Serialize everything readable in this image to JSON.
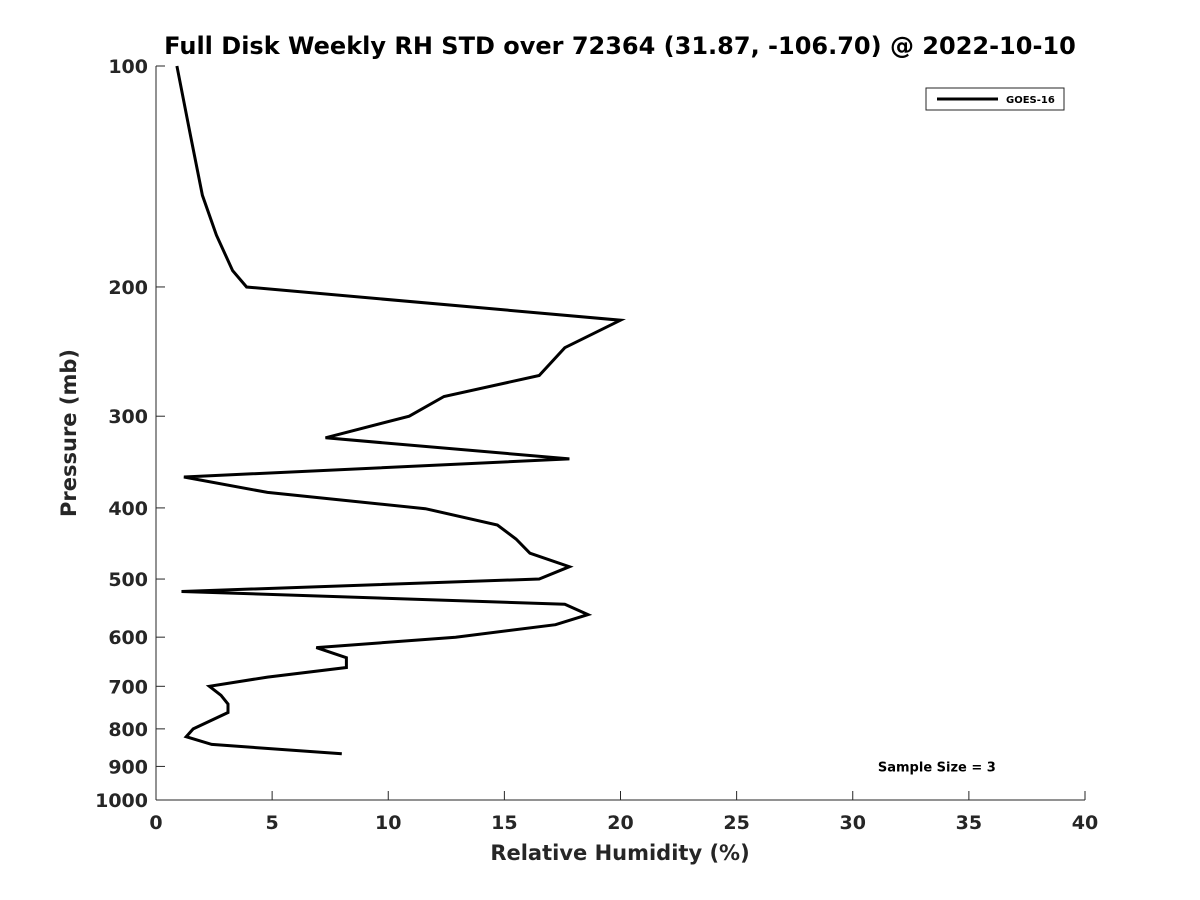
{
  "chart_data": {
    "type": "line",
    "title": "Full Disk Weekly RH STD over 72364 (31.87, -106.70) @ 2022-10-10",
    "xlabel": "Relative Humidity (%)",
    "ylabel": "Pressure (mb)",
    "xlim": [
      0,
      40
    ],
    "ylim": [
      100,
      1000
    ],
    "y_scale": "log",
    "y_reversed": true,
    "x_ticks": [
      "0",
      "5",
      "10",
      "15",
      "20",
      "25",
      "30",
      "35",
      "40"
    ],
    "y_ticks": [
      "100",
      "200",
      "300",
      "400",
      "500",
      "600",
      "700",
      "800",
      "900",
      "1000"
    ],
    "grid": false,
    "legend_position": "top-right",
    "series": [
      {
        "name": "GOES-16",
        "color": "#000000",
        "points": [
          [
            0.9,
            100
          ],
          [
            1.5,
            125
          ],
          [
            2.0,
            150
          ],
          [
            2.6,
            170
          ],
          [
            3.3,
            190
          ],
          [
            3.9,
            200
          ],
          [
            20.0,
            222
          ],
          [
            17.6,
            242
          ],
          [
            16.5,
            264
          ],
          [
            12.4,
            282
          ],
          [
            10.9,
            300
          ],
          [
            7.3,
            321
          ],
          [
            17.8,
            343
          ],
          [
            1.2,
            363
          ],
          [
            4.8,
            381
          ],
          [
            11.6,
            401
          ],
          [
            14.7,
            422
          ],
          [
            15.5,
            441
          ],
          [
            16.1,
            461
          ],
          [
            17.8,
            481
          ],
          [
            16.5,
            500
          ],
          [
            1.1,
            520
          ],
          [
            17.6,
            541
          ],
          [
            18.6,
            559
          ],
          [
            17.2,
            577
          ],
          [
            12.9,
            600
          ],
          [
            6.9,
            620
          ],
          [
            8.2,
            640
          ],
          [
            8.2,
            660
          ],
          [
            4.8,
            680
          ],
          [
            2.3,
            700
          ],
          [
            2.8,
            720
          ],
          [
            3.1,
            740
          ],
          [
            3.1,
            760
          ],
          [
            1.6,
            800
          ],
          [
            1.3,
            820
          ],
          [
            2.4,
            840
          ],
          [
            8.0,
            865
          ]
        ]
      }
    ],
    "annotations": [
      {
        "text": "Sample Size = 3",
        "x": 35,
        "y": 900
      }
    ]
  }
}
